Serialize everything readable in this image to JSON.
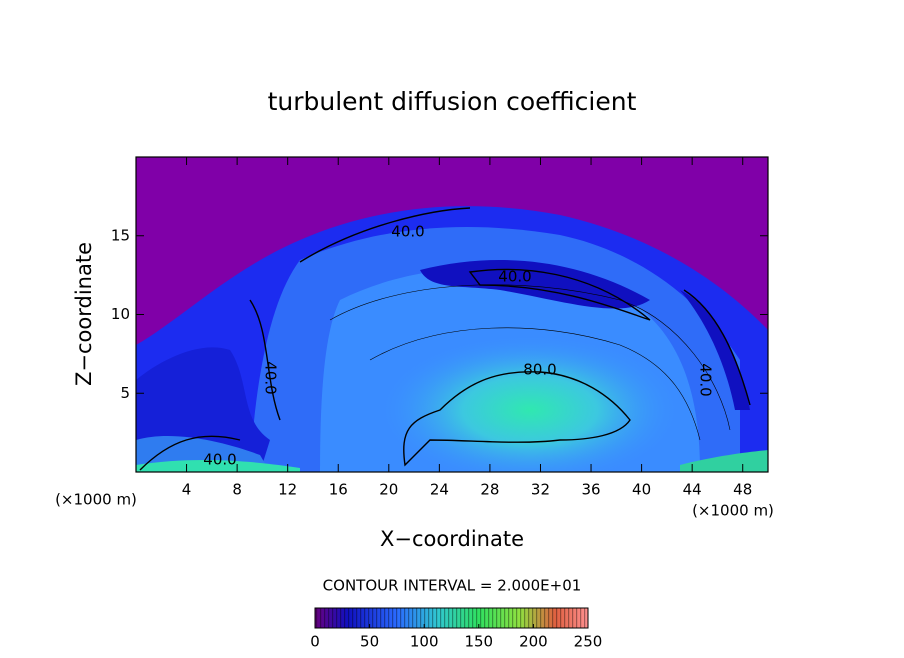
{
  "chart_data": {
    "type": "contour",
    "title": "turbulent diffusion coefficient",
    "xlabel": "X−coordinate",
    "ylabel": "Z−coordinate",
    "xunit": "(×1000 m)",
    "yunit": "(×1000 m)",
    "xlim": [
      0,
      50
    ],
    "xticks": [
      4,
      8,
      12,
      16,
      20,
      24,
      28,
      32,
      36,
      40,
      44,
      48
    ],
    "ylim": [
      0,
      20
    ],
    "yticks": [
      5,
      10,
      15
    ],
    "contour_labels": [
      "40.0",
      "40.0",
      "40.0",
      "40.0",
      "40.0",
      "80.0"
    ],
    "annotation": "CONTOUR INTERVAL = 2.000E+01",
    "colorbar": {
      "lim": [
        0,
        250
      ],
      "ticks": [
        0,
        50,
        100,
        150,
        200,
        250
      ]
    }
  }
}
